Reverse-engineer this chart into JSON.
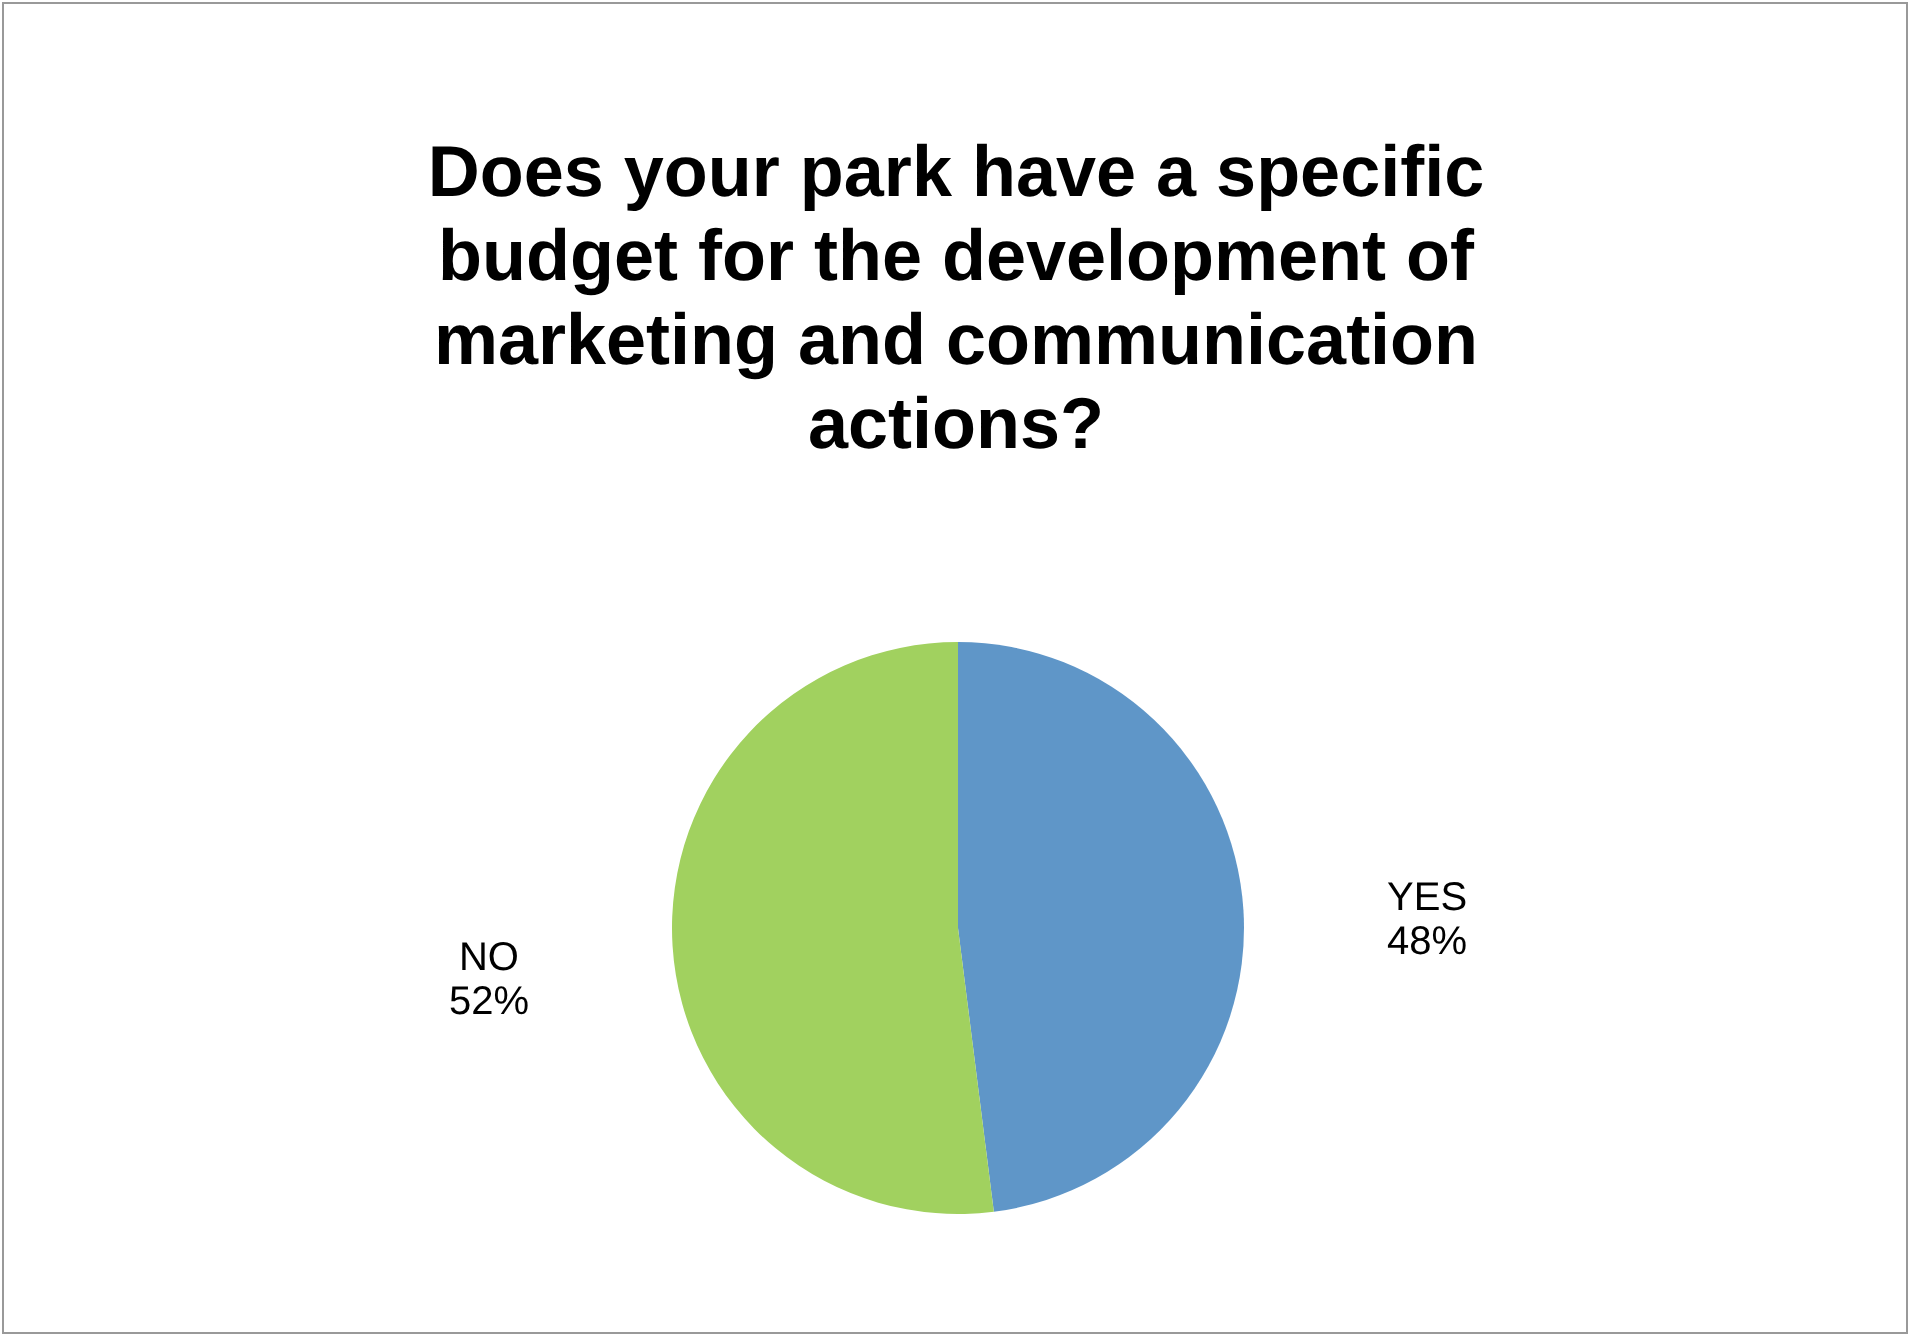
{
  "chart_data": {
    "type": "pie",
    "title": "Does your park have a specific budget for the development of marketing and communication actions?",
    "categories": [
      "YES",
      "NO"
    ],
    "values": [
      48,
      52
    ],
    "colors": [
      "#5f96c8",
      "#a1d15f"
    ],
    "value_labels": [
      "48%",
      "52%"
    ]
  }
}
